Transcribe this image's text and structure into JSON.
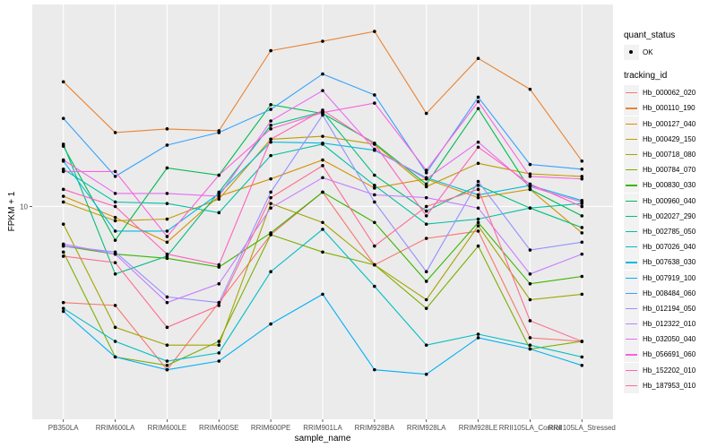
{
  "chart_data": {
    "type": "line",
    "title": "",
    "xlabel": "sample_name",
    "ylabel": "FPKM + 1",
    "y_scale": "log10",
    "ylim": [
      2.45,
      38
    ],
    "y_ticks": [
      {
        "value": 10,
        "label": "10"
      }
    ],
    "grid": true,
    "legend_position": "right",
    "categories": [
      "PB350LA",
      "RRIM600LA",
      "RRIM600LE",
      "RRIM600SE",
      "RRIM600PE",
      "RRIM901LA",
      "RRIM928BA",
      "RRIM928LA",
      "RRIM928LE",
      "RRII105LA_Control",
      "RRII105LA_Stressed"
    ],
    "legends": [
      {
        "title": "quant_status",
        "entries": [
          {
            "label": "OK",
            "shape": "point"
          }
        ]
      },
      {
        "title": "tracking_id",
        "entries": [
          "Hb_000062_020",
          "Hb_000110_190",
          "Hb_000127_040",
          "Hb_000429_150",
          "Hb_000718_080",
          "Hb_000784_070",
          "Hb_000830_030",
          "Hb_000960_040",
          "Hb_002027_290",
          "Hb_002785_050",
          "Hb_007026_040",
          "Hb_007638_030",
          "Hb_007919_100",
          "Hb_008484_060",
          "Hb_012194_050",
          "Hb_012322_010",
          "Hb_032050_040",
          "Hb_056691_060",
          "Hb_152202_010",
          "Hb_187953_010"
        ]
      }
    ],
    "series": [
      {
        "name": "Hb_000062_020",
        "color": "#F8766D",
        "values": [
          5.3,
          5.2,
          3.4,
          5.3,
          8.3,
          11.0,
          6.8,
          8.1,
          8.5,
          4.2,
          4.1
        ]
      },
      {
        "name": "Hb_000110_190",
        "color": "#EA8331",
        "values": [
          22.8,
          16.3,
          16.7,
          16.5,
          28.0,
          29.8,
          31.8,
          18.5,
          26.6,
          21.7,
          13.5
        ]
      },
      {
        "name": "Hb_000127_040",
        "color": "#D89000",
        "values": [
          10.7,
          9.3,
          7.9,
          10.7,
          12.0,
          13.6,
          11.3,
          12.0,
          10.6,
          11.2,
          8.4
        ]
      },
      {
        "name": "Hb_000429_150",
        "color": "#C09B00",
        "values": [
          10.3,
          9.1,
          9.2,
          10.5,
          15.6,
          15.9,
          15.1,
          11.4,
          13.3,
          12.4,
          12.2
        ]
      },
      {
        "name": "Hb_000718_080",
        "color": "#A3A500",
        "values": [
          8.9,
          4.5,
          4.0,
          4.0,
          10.2,
          9.0,
          6.8,
          5.4,
          8.8,
          5.4,
          5.6
        ]
      },
      {
        "name": "Hb_000784_070",
        "color": "#7CAE00",
        "values": [
          7.4,
          3.7,
          3.5,
          4.1,
          8.3,
          7.4,
          6.8,
          5.1,
          7.7,
          3.9,
          4.1
        ]
      },
      {
        "name": "Hb_000830_030",
        "color": "#39B600",
        "values": [
          7.7,
          7.3,
          7.1,
          6.7,
          8.4,
          11.0,
          9.0,
          6.1,
          9.0,
          6.0,
          6.3
        ]
      },
      {
        "name": "Hb_000960_040",
        "color": "#00BB4E",
        "values": [
          14.9,
          8.0,
          12.9,
          12.3,
          19.6,
          18.5,
          15.2,
          11.6,
          19.1,
          11.2,
          9.4
        ]
      },
      {
        "name": "Hb_002027_290",
        "color": "#00BF7D",
        "values": [
          15.1,
          6.4,
          7.2,
          11.0,
          17.1,
          18.7,
          12.3,
          9.7,
          11.5,
          9.9,
          8.7
        ]
      },
      {
        "name": "Hb_002785_050",
        "color": "#00C1A3",
        "values": [
          12.8,
          10.3,
          10.2,
          9.6,
          14.0,
          15.1,
          11.5,
          8.9,
          9.2,
          9.9,
          10.2
        ]
      },
      {
        "name": "Hb_007026_040",
        "color": "#00BFC4",
        "values": [
          5.1,
          4.1,
          3.6,
          3.8,
          6.5,
          8.6,
          5.9,
          4.0,
          4.3,
          4.0,
          3.7
        ]
      },
      {
        "name": "Hb_007638_030",
        "color": "#00BAE0",
        "values": [
          13.5,
          8.5,
          8.5,
          10.9,
          15.3,
          15.2,
          14.5,
          12.1,
          10.8,
          11.5,
          10.4
        ]
      },
      {
        "name": "Hb_007919_100",
        "color": "#00B0F6",
        "values": [
          5.0,
          3.7,
          3.4,
          3.6,
          4.6,
          5.6,
          3.4,
          3.3,
          4.2,
          3.9,
          3.5
        ]
      },
      {
        "name": "Hb_008484_060",
        "color": "#35A2FF",
        "values": [
          17.9,
          12.2,
          15.0,
          16.3,
          19.0,
          24.0,
          20.9,
          12.5,
          20.6,
          13.2,
          12.8
        ]
      },
      {
        "name": "Hb_012194_050",
        "color": "#9590FF",
        "values": [
          7.7,
          7.4,
          5.5,
          5.3,
          11.0,
          18.3,
          10.3,
          6.5,
          11.8,
          7.5,
          7.9
        ]
      },
      {
        "name": "Hb_012322_010",
        "color": "#C77CFF",
        "values": [
          7.8,
          7.3,
          5.3,
          6.0,
          9.9,
          12.1,
          10.8,
          10.6,
          9.9,
          6.4,
          7.3
        ]
      },
      {
        "name": "Hb_032050_040",
        "color": "#E76BF3",
        "values": [
          13.6,
          10.9,
          10.9,
          10.7,
          17.6,
          21.5,
          14.6,
          12.0,
          15.3,
          11.4,
          10.3
        ]
      },
      {
        "name": "Hb_056691_060",
        "color": "#FA62DB",
        "values": [
          12.6,
          12.6,
          8.2,
          12.3,
          16.7,
          18.6,
          19.8,
          12.7,
          20.0,
          12.2,
          12.0
        ]
      },
      {
        "name": "Hb_152202_010",
        "color": "#FF62BC",
        "values": [
          11.2,
          10.0,
          7.3,
          6.8,
          15.6,
          18.9,
          15.1,
          9.4,
          14.8,
          11.6,
          10.0
        ]
      },
      {
        "name": "Hb_187953_010",
        "color": "#FF6C91",
        "values": [
          7.2,
          6.9,
          4.5,
          5.2,
          10.6,
          13.1,
          7.7,
          10.0,
          11.2,
          4.7,
          4.1
        ]
      }
    ]
  }
}
